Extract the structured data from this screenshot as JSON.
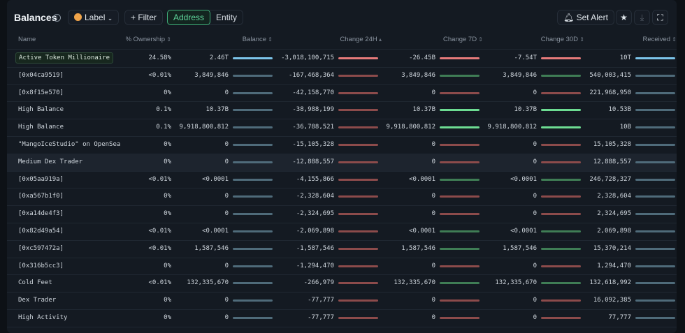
{
  "header": {
    "title": "Balances",
    "info_icon": "info-icon",
    "label_button": "Label",
    "filter_button": "+ Filter",
    "view_toggle": {
      "options": [
        "Address",
        "Entity"
      ],
      "selected": "Address"
    },
    "set_alert": "Set Alert",
    "icons": [
      "star-icon",
      "download-icon",
      "fullscreen-icon"
    ]
  },
  "columns": [
    "Name",
    "% Ownership",
    "Balance",
    "Change 24H",
    "Change 7D",
    "Change 30D",
    "Received"
  ],
  "sorted_column": "Change 24H",
  "colors": {
    "accent": "#5ed49a",
    "neutral_strong": "#7cc4ea",
    "neutral": "#4f6b7a",
    "neg_strong": "#e57a7a",
    "neg": "#8c4b4b",
    "pos_strong": "#6ddc92",
    "pos": "#3f7d55"
  },
  "rows": [
    {
      "name": "Active Token Millionaire",
      "badge": true,
      "ownership": "24.58%",
      "balance": "2.46T",
      "c24": "-3,018,100,715",
      "c7": "-26.45B",
      "c30": "-7.54T",
      "received": "10T",
      "strong": [
        1,
        1,
        1,
        1,
        1
      ]
    },
    {
      "name": "[0x04ca9519]",
      "ownership": "<0.01%",
      "balance": "3,849,846",
      "c24": "-167,468,364",
      "c7": "3,849,846",
      "c30": "3,849,846",
      "received": "540,003,415"
    },
    {
      "name": "[0x8f15e570]",
      "ownership": "0%",
      "balance": "0",
      "c24": "-42,158,770",
      "c7": "0",
      "c30": "0",
      "received": "221,968,950"
    },
    {
      "name": "High Balance",
      "ownership": "0.1%",
      "balance": "10.37B",
      "c24": "-38,988,199",
      "c7": "10.37B",
      "c30": "10.37B",
      "received": "10.53B",
      "strong": [
        0,
        0,
        1,
        1,
        0
      ]
    },
    {
      "name": "High Balance",
      "ownership": "0.1%",
      "balance": "9,918,800,812",
      "c24": "-36,788,521",
      "c7": "9,918,800,812",
      "c30": "9,918,800,812",
      "received": "10B",
      "strong": [
        0,
        0,
        1,
        1,
        0
      ]
    },
    {
      "name": "\"MangoIceStudio\" on OpenSea",
      "ownership": "0%",
      "balance": "0",
      "c24": "-15,105,328",
      "c7": "0",
      "c30": "0",
      "received": "15,105,328"
    },
    {
      "name": "Medium Dex Trader",
      "ownership": "0%",
      "balance": "0",
      "c24": "-12,888,557",
      "c7": "0",
      "c30": "0",
      "received": "12,888,557",
      "hover": true
    },
    {
      "name": "[0x05aa919a]",
      "ownership": "<0.01%",
      "balance": "<0.0001",
      "c24": "-4,155,866",
      "c7": "<0.0001",
      "c30": "<0.0001",
      "received": "246,728,327"
    },
    {
      "name": "[0xa567b1f0]",
      "ownership": "0%",
      "balance": "0",
      "c24": "-2,328,604",
      "c7": "0",
      "c30": "0",
      "received": "2,328,604"
    },
    {
      "name": "[0xa14de4f3]",
      "ownership": "0%",
      "balance": "0",
      "c24": "-2,324,695",
      "c7": "0",
      "c30": "0",
      "received": "2,324,695"
    },
    {
      "name": "[0x82d49a54]",
      "ownership": "<0.01%",
      "balance": "<0.0001",
      "c24": "-2,069,898",
      "c7": "<0.0001",
      "c30": "<0.0001",
      "received": "2,069,898"
    },
    {
      "name": "[0xc597472a]",
      "ownership": "<0.01%",
      "balance": "1,587,546",
      "c24": "-1,587,546",
      "c7": "1,587,546",
      "c30": "1,587,546",
      "received": "15,370,214"
    },
    {
      "name": "[0x316b5cc3]",
      "ownership": "0%",
      "balance": "0",
      "c24": "-1,294,470",
      "c7": "0",
      "c30": "0",
      "received": "1,294,470"
    },
    {
      "name": "Cold Feet",
      "ownership": "<0.01%",
      "balance": "132,335,670",
      "c24": "-266,979",
      "c7": "132,335,670",
      "c30": "132,335,670",
      "received": "132,618,992"
    },
    {
      "name": "Dex Trader",
      "ownership": "0%",
      "balance": "0",
      "c24": "-77,777",
      "c7": "0",
      "c30": "0",
      "received": "16,092,385"
    },
    {
      "name": "High Activity",
      "ownership": "0%",
      "balance": "0",
      "c24": "-77,777",
      "c7": "0",
      "c30": "0",
      "received": "77,777"
    }
  ]
}
